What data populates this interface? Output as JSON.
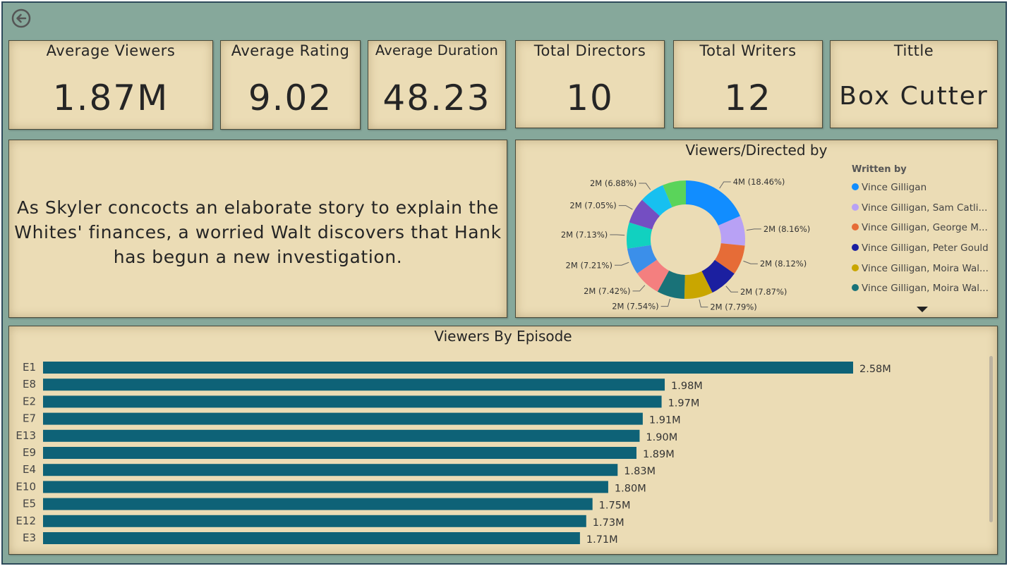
{
  "kpis": [
    {
      "label": "Average Viewers",
      "value": "1.87M"
    },
    {
      "label": "Average Rating",
      "value": "9.02"
    },
    {
      "label": "Average Duration",
      "value": "48.23"
    },
    {
      "label": "Total Directors",
      "value": "10"
    },
    {
      "label": "Total Writers",
      "value": "12"
    },
    {
      "label": "Tittle",
      "value": "Box Cutter"
    }
  ],
  "description": "As Skyler concocts an elaborate story to explain the Whites' finances, a worried Walt discovers that Hank has begun a new investigation.",
  "donut": {
    "title": "Viewers/Directed by",
    "legend_title": "Written by",
    "legend": [
      {
        "label": "Vince Gilligan",
        "color": "#118dff"
      },
      {
        "label": "Vince Gilligan, Sam Catli...",
        "color": "#b8a1f5"
      },
      {
        "label": "Vince Gilligan, George M...",
        "color": "#e66c37"
      },
      {
        "label": "Vince Gilligan, Peter Gould",
        "color": "#1b1fa0"
      },
      {
        "label": "Vince Gilligan, Moira Wal...",
        "color": "#c9a600"
      },
      {
        "label": "Vince Gilligan, Moira Wal...",
        "color": "#197278"
      }
    ],
    "more_icon": "triangle-down-icon"
  },
  "bar": {
    "title": "Viewers By Episode",
    "bar_color": "#0e6277"
  },
  "chart_data": [
    {
      "type": "pie",
      "title": "Viewers/Directed by",
      "legend_title": "Written by",
      "legend_placement": "right",
      "slices": [
        {
          "label": "4M (18.46%)",
          "value": 18.46,
          "color": "#118dff"
        },
        {
          "label": "2M (8.16%)",
          "value": 8.16,
          "color": "#b8a1f5"
        },
        {
          "label": "2M (8.12%)",
          "value": 8.12,
          "color": "#e66c37"
        },
        {
          "label": "2M (7.87%)",
          "value": 7.87,
          "color": "#1b1fa0"
        },
        {
          "label": "2M (7.79%)",
          "value": 7.79,
          "color": "#c9a600"
        },
        {
          "label": "2M (7.54%)",
          "value": 7.54,
          "color": "#197278"
        },
        {
          "label": "2M (7.42%)",
          "value": 7.42,
          "color": "#f47f7f"
        },
        {
          "label": "2M (7.21%)",
          "value": 7.21,
          "color": "#3b8fea"
        },
        {
          "label": "2M (7.13%)",
          "value": 7.13,
          "color": "#11d1c0"
        },
        {
          "label": "2M (7.05%)",
          "value": 7.05,
          "color": "#744ec2"
        },
        {
          "label": "2M (6.88%)",
          "value": 6.88,
          "color": "#17c0f0"
        },
        {
          "label": "",
          "value": 6.37,
          "color": "#5ad45a"
        }
      ]
    },
    {
      "type": "bar",
      "orientation": "horizontal",
      "title": "Viewers By Episode",
      "categories": [
        "E1",
        "E8",
        "E2",
        "E7",
        "E13",
        "E9",
        "E4",
        "E10",
        "E5",
        "E12",
        "E3"
      ],
      "values": [
        2.58,
        1.98,
        1.97,
        1.91,
        1.9,
        1.89,
        1.83,
        1.8,
        1.75,
        1.73,
        1.71
      ],
      "value_labels": [
        "2.58M",
        "1.98M",
        "1.97M",
        "1.91M",
        "1.90M",
        "1.89M",
        "1.83M",
        "1.80M",
        "1.75M",
        "1.73M",
        "1.71M"
      ],
      "xlim": [
        0,
        2.58
      ],
      "grid": false
    }
  ]
}
